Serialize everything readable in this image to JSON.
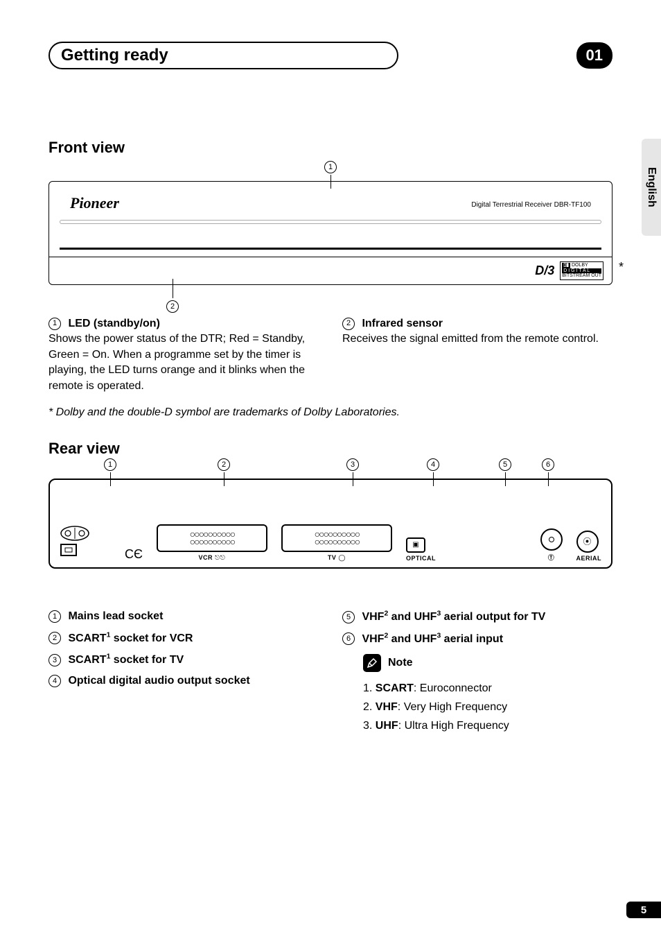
{
  "header": {
    "title": "Getting ready",
    "badge": "01"
  },
  "side_tab": "English",
  "front": {
    "heading": "Front view",
    "brand": "Pioneer",
    "device_text": "Digital Terrestrial Receiver  DBR-TF100",
    "dvb": "D/3",
    "dolby_top": "DOLBY",
    "dolby_mid": "D I G I T A L",
    "dolby_bot": "BITSTREAM OUT",
    "star": "*",
    "callout1": "1",
    "callout2": "2",
    "item1_title": "LED (standby/on)",
    "item1_body": "Shows the power status of the DTR; Red = Standby, Green = On. When a programme set by the timer is playing, the LED turns orange and it blinks when the remote is operated.",
    "item2_title": "Infrared sensor",
    "item2_body": "Receives the signal emitted from the remote control."
  },
  "footnote": "* Dolby and the double-D symbol are trademarks of Dolby Laboratories.",
  "rear": {
    "heading": "Rear view",
    "callouts": [
      "1",
      "2",
      "3",
      "4",
      "5",
      "6"
    ],
    "labels": {
      "vcr": "VCR",
      "tv": "TV",
      "optical": "OPTICAL",
      "tvout": "TV",
      "aerial": "AERIAL"
    },
    "ce": "CЄ",
    "list_left": [
      {
        "n": "1",
        "html": "Mains lead socket"
      },
      {
        "n": "2",
        "html": "SCART<sup>1</sup> socket for VCR"
      },
      {
        "n": "3",
        "html": "SCART<sup>1</sup> socket for TV"
      },
      {
        "n": "4",
        "html": "Optical digital audio output socket"
      }
    ],
    "list_right": [
      {
        "n": "5",
        "html": "VHF<sup>2</sup> and UHF<sup>3</sup> aerial output for TV"
      },
      {
        "n": "6",
        "html": "VHF<sup>2</sup> and UHF<sup>3</sup> aerial input"
      }
    ],
    "note_title": "Note",
    "notes": [
      {
        "n": "1",
        "term": "SCART",
        "def": "Euroconnector"
      },
      {
        "n": "2",
        "term": "VHF",
        "def": "Very High Frequency"
      },
      {
        "n": "3",
        "term": "UHF",
        "def": "Ultra High Frequency"
      }
    ]
  },
  "page_number": "5",
  "colors": {
    "page_bg": "#ffffff",
    "ink": "#000000",
    "side_tab_bg": "#e6e6e6"
  }
}
